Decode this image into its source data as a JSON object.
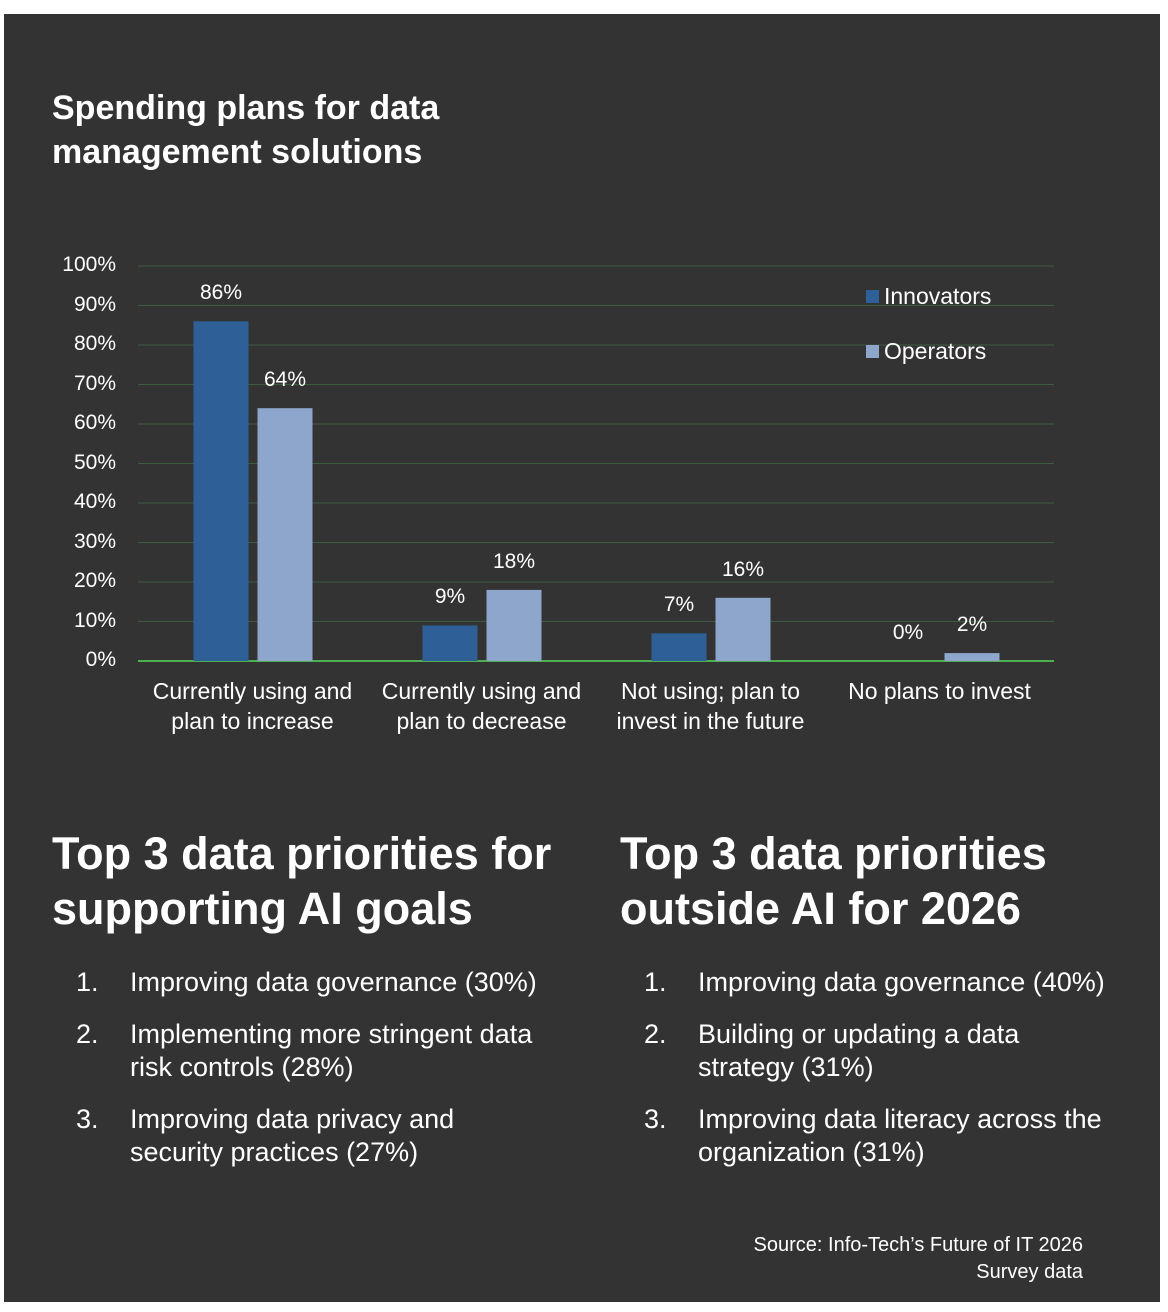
{
  "chart_data": {
    "type": "bar",
    "title": "Spending plans for data management solutions",
    "categories": [
      "Currently using and plan to increase",
      "Currently using and plan to decrease",
      "Not using; plan to invest in the future",
      "No plans to invest"
    ],
    "series": [
      {
        "name": "Innovators",
        "color": "#2f5f97",
        "values": [
          86,
          9,
          7,
          0
        ],
        "value_labels": [
          "86%",
          "9%",
          "7%",
          "0%"
        ]
      },
      {
        "name": "Operators",
        "color": "#8fa6cc",
        "values": [
          64,
          18,
          16,
          2
        ],
        "value_labels": [
          "64%",
          "18%",
          "16%",
          "2%"
        ]
      }
    ],
    "ylim": [
      0,
      100
    ],
    "yticks": [
      {
        "value": 0,
        "label": "0%"
      },
      {
        "value": 10,
        "label": "10%"
      },
      {
        "value": 20,
        "label": "20%"
      },
      {
        "value": 30,
        "label": "30%"
      },
      {
        "value": 40,
        "label": "40%"
      },
      {
        "value": 50,
        "label": "50%"
      },
      {
        "value": 60,
        "label": "60%"
      },
      {
        "value": 70,
        "label": "70%"
      },
      {
        "value": 80,
        "label": "80%"
      },
      {
        "value": 90,
        "label": "90%"
      },
      {
        "value": 100,
        "label": "100%"
      }
    ],
    "grid": true,
    "legend": "top-right"
  },
  "priorities": [
    {
      "title": "Top 3 data priorities for supporting AI goals",
      "items": [
        {
          "number": "1.",
          "text": "Improving data governance (30%)"
        },
        {
          "number": "2.",
          "text": "Implementing more stringent data risk controls (28%)"
        },
        {
          "number": "3.",
          "text": "Improving data privacy and security practices (27%)"
        }
      ]
    },
    {
      "title": "Top 3 data priorities outside AI for 2026",
      "items": [
        {
          "number": "1.",
          "text": "Improving data governance (40%)"
        },
        {
          "number": "2.",
          "text": "Building or updating a data strategy (31%)"
        },
        {
          "number": "3.",
          "text": "Improving data literacy across the organization (31%)"
        }
      ]
    }
  ],
  "source": "Source: Info-Tech’s Future of IT 2026 Survey data"
}
